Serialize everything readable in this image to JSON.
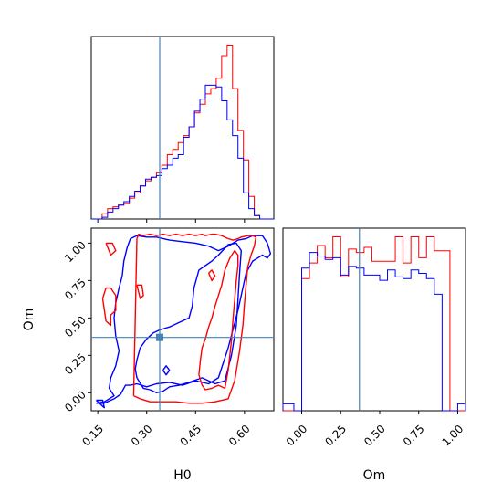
{
  "chart_data": {
    "type": "corner",
    "x_param": "H0",
    "y_param": "Om",
    "truth": {
      "H0": 0.34,
      "Om": 0.37
    },
    "colors": {
      "series_a": "#ff0000",
      "series_b": "#0000ff",
      "truth": "#4682b4",
      "frame": "#000000"
    },
    "panels": {
      "H0_hist": {
        "xlim": [
          0.13,
          0.69
        ],
        "bin_edges": [
          0.13,
          0.1467,
          0.1633,
          0.18,
          0.1967,
          0.2133,
          0.23,
          0.2467,
          0.2633,
          0.28,
          0.2967,
          0.3133,
          0.33,
          0.3467,
          0.3633,
          0.38,
          0.3967,
          0.4133,
          0.43,
          0.4467,
          0.4633,
          0.48,
          0.4967,
          0.5133,
          0.53,
          0.5467,
          0.5633,
          0.58,
          0.5967,
          0.6133,
          0.63,
          0.6467,
          0.6633,
          0.69
        ],
        "series": [
          {
            "name": "",
            "color": "#ff0000",
            "values": [
              0.0,
              0.0,
              0.03,
              0.06,
              0.07,
              0.08,
              0.09,
              0.12,
              0.15,
              0.19,
              0.22,
              0.24,
              0.27,
              0.31,
              0.37,
              0.4,
              0.44,
              0.48,
              0.53,
              0.61,
              0.66,
              0.72,
              0.75,
              0.81,
              0.94,
              1.0,
              0.75,
              0.51,
              0.34,
              0.13,
              0.02,
              0.0,
              0.0
            ]
          },
          {
            "name": "",
            "color": "#0000ff",
            "values": [
              0.0,
              0.0,
              0.01,
              0.04,
              0.06,
              0.08,
              0.1,
              0.13,
              0.16,
              0.19,
              0.23,
              0.24,
              0.25,
              0.29,
              0.31,
              0.35,
              0.37,
              0.47,
              0.53,
              0.62,
              0.69,
              0.77,
              0.77,
              0.76,
              0.68,
              0.57,
              0.48,
              0.35,
              0.15,
              0.06,
              0.02,
              0.0,
              0.0
            ]
          }
        ]
      },
      "Om_hist": {
        "xlim": [
          -0.12,
          1.05
        ],
        "bin_edges": [
          -0.12,
          -0.05,
          0.0,
          0.05,
          0.1,
          0.15,
          0.2,
          0.25,
          0.3,
          0.35,
          0.4,
          0.45,
          0.5,
          0.55,
          0.6,
          0.65,
          0.7,
          0.75,
          0.8,
          0.85,
          0.9,
          0.95,
          1.0,
          1.05
        ],
        "series": [
          {
            "name": "",
            "color": "#ff0000",
            "values": [
              0.0,
              0.0,
              0.76,
              0.85,
              0.95,
              0.88,
              1.0,
              0.77,
              0.93,
              0.91,
              0.94,
              0.86,
              0.86,
              0.86,
              1.0,
              0.85,
              1.0,
              0.88,
              1.0,
              0.92,
              0.92,
              0.0,
              0.0
            ]
          },
          {
            "name": "",
            "color": "#0000ff",
            "values": [
              0.04,
              0.0,
              0.82,
              0.91,
              0.89,
              0.87,
              0.88,
              0.78,
              0.83,
              0.82,
              0.78,
              0.78,
              0.75,
              0.81,
              0.77,
              0.76,
              0.81,
              0.79,
              0.76,
              0.67,
              0.0,
              0.0,
              0.04
            ]
          }
        ]
      },
      "H0_Om_contour": {
        "xlim": [
          0.13,
          0.69
        ],
        "ylim": [
          -0.12,
          1.1
        ],
        "contours": [
          {
            "color": "#0000ff",
            "x": [
              0.145,
              0.17,
              0.2,
              0.22,
              0.235,
              0.25,
              0.27,
              0.3,
              0.33,
              0.37,
              0.41,
              0.45,
              0.49,
              0.52,
              0.55,
              0.58,
              0.605,
              0.625,
              0.64,
              0.655,
              0.67,
              0.68,
              0.67,
              0.655,
              0.64,
              0.625,
              0.605,
              0.58,
              0.55,
              0.52,
              0.49,
              0.45,
              0.41,
              0.37,
              0.33,
              0.3,
              0.27,
              0.25,
              0.24,
              0.23,
              0.225,
              0.215,
              0.205,
              0.2,
              0.205,
              0.215,
              0.205,
              0.19,
              0.185,
              0.2,
              0.17,
              0.145
            ],
            "y": [
              -0.07,
              -0.07,
              -0.04,
              -0.01,
              0.05,
              0.05,
              0.06,
              0.04,
              0.06,
              0.07,
              0.05,
              0.08,
              0.06,
              0.1,
              0.3,
              0.55,
              0.8,
              0.88,
              0.9,
              0.92,
              0.9,
              0.93,
              1.0,
              1.05,
              1.05,
              1.05,
              1.03,
              1.02,
              0.98,
              0.95,
              0.98,
              1.0,
              1.01,
              1.02,
              1.04,
              1.04,
              1.05,
              1.03,
              0.97,
              0.88,
              0.78,
              0.7,
              0.6,
              0.5,
              0.38,
              0.28,
              0.18,
              0.1,
              0.03,
              -0.02,
              -0.06,
              -0.07
            ]
          },
          {
            "color": "#0000ff",
            "x": [
              0.27,
              0.29,
              0.31,
              0.33,
              0.35,
              0.37,
              0.4,
              0.43,
              0.47,
              0.51,
              0.54,
              0.56,
              0.575,
              0.58,
              0.585,
              0.59,
              0.575,
              0.55,
              0.52,
              0.5,
              0.48,
              0.46,
              0.445,
              0.44,
              0.43,
              0.4,
              0.37,
              0.34,
              0.32,
              0.3,
              0.28,
              0.27,
              0.265,
              0.27
            ],
            "y": [
              0.1,
              0.03,
              0.02,
              0.0,
              0.01,
              0.04,
              0.05,
              0.07,
              0.1,
              0.06,
              0.08,
              0.25,
              0.45,
              0.62,
              0.8,
              0.95,
              1.0,
              0.99,
              0.92,
              0.88,
              0.85,
              0.82,
              0.7,
              0.58,
              0.5,
              0.47,
              0.44,
              0.42,
              0.4,
              0.36,
              0.3,
              0.22,
              0.16,
              0.1
            ]
          },
          {
            "color": "#ff0000",
            "x": [
              0.26,
              0.28,
              0.31,
              0.35,
              0.39,
              0.43,
              0.47,
              0.51,
              0.55,
              0.57,
              0.585,
              0.595,
              0.6,
              0.605,
              0.61,
              0.62,
              0.63,
              0.635,
              0.625,
              0.61,
              0.59,
              0.58,
              0.565,
              0.55,
              0.53,
              0.51,
              0.5,
              0.48,
              0.47,
              0.45,
              0.43,
              0.41,
              0.39,
              0.37,
              0.35,
              0.33,
              0.31,
              0.29,
              0.275,
              0.27,
              0.265,
              0.26
            ],
            "y": [
              -0.02,
              -0.04,
              -0.06,
              -0.06,
              -0.06,
              -0.07,
              -0.07,
              -0.06,
              -0.04,
              0.08,
              0.28,
              0.45,
              0.6,
              0.72,
              0.84,
              0.92,
              0.98,
              1.04,
              1.05,
              1.05,
              1.04,
              1.03,
              1.02,
              1.03,
              1.05,
              1.06,
              1.06,
              1.05,
              1.06,
              1.05,
              1.06,
              1.05,
              1.06,
              1.05,
              1.06,
              1.05,
              1.06,
              1.05,
              1.06,
              1.03,
              0.5,
              -0.02
            ]
          },
          {
            "color": "#ff0000",
            "x": [
              0.46,
              0.47,
              0.48,
              0.5,
              0.52,
              0.54,
              0.55,
              0.56,
              0.565,
              0.57,
              0.575,
              0.58,
              0.58,
              0.57,
              0.555,
              0.54,
              0.53,
              0.52,
              0.51,
              0.5,
              0.49,
              0.48,
              0.47,
              0.465,
              0.46
            ],
            "y": [
              0.12,
              0.05,
              0.02,
              0.03,
              0.05,
              0.03,
              0.15,
              0.35,
              0.5,
              0.62,
              0.75,
              0.85,
              0.92,
              0.95,
              0.9,
              0.82,
              0.72,
              0.65,
              0.58,
              0.5,
              0.44,
              0.36,
              0.3,
              0.22,
              0.12
            ]
          },
          {
            "color": "#ff0000",
            "x": [
              0.165,
              0.175,
              0.19,
              0.205,
              0.205,
              0.19,
              0.19,
              0.175,
              0.165
            ],
            "y": [
              0.63,
              0.7,
              0.7,
              0.65,
              0.55,
              0.52,
              0.45,
              0.48,
              0.63
            ]
          },
          {
            "color": "#ff0000",
            "x": [
              0.175,
              0.195,
              0.205,
              0.19,
              0.175
            ],
            "y": [
              1.0,
              1.0,
              0.95,
              0.92,
              1.0
            ]
          },
          {
            "color": "#ff0000",
            "x": [
              0.27,
              0.285,
              0.29,
              0.28,
              0.27
            ],
            "y": [
              0.72,
              0.72,
              0.65,
              0.63,
              0.72
            ]
          },
          {
            "color": "#ff0000",
            "x": [
              0.49,
              0.5,
              0.51,
              0.5,
              0.49
            ],
            "y": [
              0.8,
              0.82,
              0.78,
              0.75,
              0.8
            ]
          },
          {
            "color": "#0000ff",
            "x": [
              0.35,
              0.36,
              0.37,
              0.36,
              0.35
            ],
            "y": [
              0.15,
              0.18,
              0.15,
              0.12,
              0.15
            ]
          },
          {
            "color": "#0000ff",
            "x": [
              0.145,
              0.165,
              0.17,
              0.145
            ],
            "y": [
              -0.05,
              -0.05,
              -0.1,
              -0.05
            ]
          }
        ]
      }
    },
    "ticks": {
      "H0": [
        "0.15",
        "0.30",
        "0.45",
        "0.60"
      ],
      "Om_y": [
        "0.00",
        "0.25",
        "0.50",
        "0.75",
        "1.00"
      ],
      "Om_x": [
        "0.00",
        "0.25",
        "0.50",
        "0.75",
        "1.00"
      ]
    },
    "labels": {
      "xlabel_left": "H0",
      "xlabel_right": "Om",
      "ylabel_bottom": "Om"
    }
  }
}
